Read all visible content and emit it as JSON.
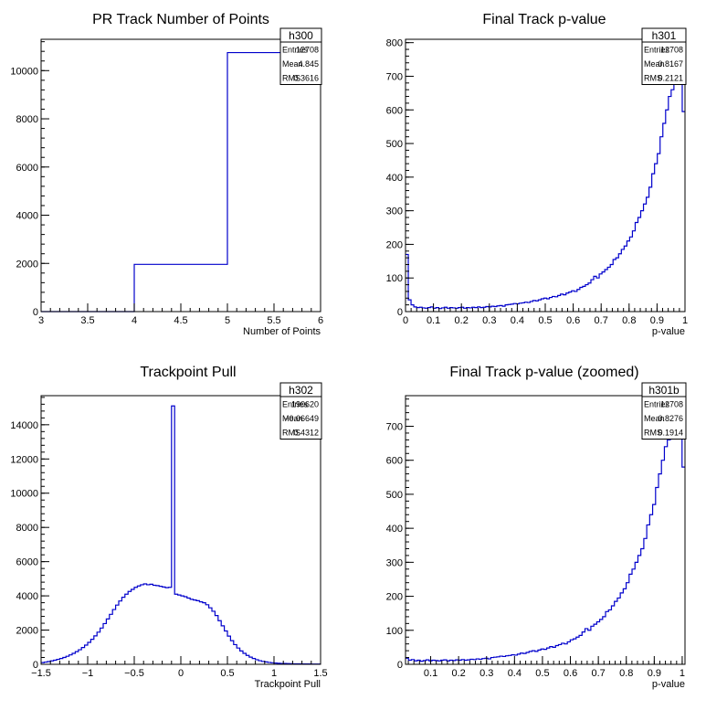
{
  "chart_data": [
    {
      "type": "histogram",
      "title": "PR Track Number of Points",
      "xlabel": "Number of Points",
      "ylabel": "",
      "xlim": [
        3,
        6
      ],
      "ylim": [
        0,
        11300
      ],
      "xticks": [
        "3",
        "3.5",
        "4",
        "4.5",
        "5",
        "5.5",
        "6"
      ],
      "xtick_values": [
        3,
        3.5,
        4,
        4.5,
        5,
        5.5,
        6
      ],
      "yticks": [
        "0",
        "2000",
        "4000",
        "6000",
        "8000",
        "10000"
      ],
      "ytick_values": [
        0,
        2000,
        4000,
        6000,
        8000,
        10000
      ],
      "line_color": "#0000cc",
      "bins": [
        {
          "x": [
            3,
            4
          ],
          "y": 0
        },
        {
          "x": [
            4,
            5
          ],
          "y": 1960
        },
        {
          "x": [
            5,
            6
          ],
          "y": 10748
        }
      ],
      "stats": {
        "name": "h300",
        "rows": [
          {
            "label": "Entries",
            "value": "12708"
          },
          {
            "label": "Mean",
            "value": "4.845"
          },
          {
            "label": "RMS",
            "value": "0.3616"
          }
        ]
      }
    },
    {
      "type": "histogram",
      "title": "Final Track p-value",
      "xlabel": "p-value",
      "ylabel": "",
      "xlim": [
        0,
        1
      ],
      "ylim": [
        0,
        810
      ],
      "xticks": [
        "0",
        "0.1",
        "0.2",
        "0.3",
        "0.4",
        "0.5",
        "0.6",
        "0.7",
        "0.8",
        "0.9",
        "1"
      ],
      "xtick_values": [
        0,
        0.1,
        0.2,
        0.3,
        0.4,
        0.5,
        0.6,
        0.7,
        0.8,
        0.9,
        1
      ],
      "yticks": [
        "0",
        "100",
        "200",
        "300",
        "400",
        "500",
        "600",
        "700",
        "800"
      ],
      "ytick_values": [
        0,
        100,
        200,
        300,
        400,
        500,
        600,
        700,
        800
      ],
      "line_color": "#0000cc",
      "bin_edges": [
        0,
        1
      ],
      "counts": [
        170,
        35,
        20,
        14,
        12,
        13,
        11,
        10,
        12,
        14,
        10,
        12,
        9,
        11,
        13,
        10,
        12,
        11,
        10,
        12,
        13,
        10,
        12,
        11,
        13,
        12,
        14,
        12,
        13,
        15,
        14,
        16,
        15,
        17,
        18,
        16,
        20,
        21,
        22,
        24,
        23,
        25,
        26,
        28,
        27,
        30,
        33,
        32,
        35,
        38,
        40,
        38,
        42,
        45,
        44,
        48,
        52,
        50,
        55,
        58,
        62,
        60,
        66,
        72,
        75,
        80,
        85,
        95,
        105,
        100,
        112,
        118,
        125,
        132,
        140,
        155,
        160,
        172,
        185,
        195,
        210,
        222,
        240,
        265,
        280,
        300,
        320,
        340,
        370,
        410,
        440,
        470,
        520,
        560,
        600,
        640,
        660,
        690,
        730,
        800,
        595
      ],
      "stats": {
        "name": "h301",
        "rows": [
          {
            "label": "Entries",
            "value": "12708"
          },
          {
            "label": "Mean",
            "value": "0.8167"
          },
          {
            "label": "RMS",
            "value": "0.2121"
          }
        ]
      }
    },
    {
      "type": "histogram",
      "title": "Trackpoint Pull",
      "xlabel": "Trackpoint Pull",
      "ylabel": "",
      "xlim": [
        -1.5,
        1.5
      ],
      "ylim": [
        0,
        15700
      ],
      "xticks": [
        "−1.5",
        "−1",
        "−0.5",
        "0",
        "0.5",
        "1",
        "1.5"
      ],
      "xtick_values": [
        -1.5,
        -1,
        -0.5,
        0,
        0.5,
        1,
        1.5
      ],
      "yticks": [
        "0",
        "2000",
        "4000",
        "6000",
        "8000",
        "10000",
        "12000",
        "14000"
      ],
      "ytick_values": [
        0,
        2000,
        4000,
        6000,
        8000,
        10000,
        12000,
        14000
      ],
      "line_color": "#0000cc",
      "bin_edges": [
        -1.5,
        1.5
      ],
      "counts": [
        100,
        130,
        160,
        200,
        240,
        290,
        340,
        400,
        470,
        550,
        640,
        740,
        850,
        980,
        1120,
        1280,
        1460,
        1660,
        1880,
        2120,
        2380,
        2650,
        2920,
        3200,
        3460,
        3700,
        3920,
        4100,
        4260,
        4380,
        4500,
        4580,
        4650,
        4700,
        4650,
        4680,
        4620,
        4600,
        4560,
        4520,
        4480,
        4500,
        15100,
        4100,
        4050,
        4000,
        3950,
        3870,
        3800,
        3760,
        3720,
        3650,
        3600,
        3480,
        3300,
        3100,
        2850,
        2550,
        2250,
        1950,
        1650,
        1380,
        1150,
        950,
        780,
        640,
        520,
        420,
        340,
        270,
        210,
        170,
        140,
        110,
        90,
        75,
        60,
        50,
        45,
        40,
        35,
        30,
        28,
        25,
        22,
        20,
        18,
        16,
        15,
        14
      ],
      "stats": {
        "name": "h302",
        "rows": [
          {
            "label": "Entries",
            "value": "190620"
          },
          {
            "label": "Mean",
            "value": "−0.06649"
          },
          {
            "label": "RMS",
            "value": "0.4312"
          }
        ]
      }
    },
    {
      "type": "histogram",
      "title": "Final Track p-value (zoomed)",
      "xlabel": "p-value",
      "ylabel": "",
      "xlim": [
        0.01,
        1.01
      ],
      "ylim": [
        0,
        790
      ],
      "xticks": [
        "0.1",
        "0.2",
        "0.3",
        "0.4",
        "0.5",
        "0.6",
        "0.7",
        "0.8",
        "0.9",
        "1"
      ],
      "xtick_values": [
        0.1,
        0.2,
        0.3,
        0.4,
        0.5,
        0.6,
        0.7,
        0.8,
        0.9,
        1
      ],
      "yticks": [
        "0",
        "100",
        "200",
        "300",
        "400",
        "500",
        "600",
        "700"
      ],
      "ytick_values": [
        0,
        100,
        200,
        300,
        400,
        500,
        600,
        700
      ],
      "line_color": "#0000cc",
      "bin_edges": [
        0.01,
        1.01
      ],
      "counts": [
        18,
        12,
        14,
        10,
        12,
        9,
        11,
        13,
        10,
        12,
        11,
        10,
        12,
        13,
        10,
        12,
        11,
        13,
        12,
        14,
        12,
        13,
        15,
        14,
        16,
        15,
        17,
        18,
        16,
        20,
        21,
        22,
        24,
        23,
        25,
        26,
        28,
        27,
        30,
        33,
        32,
        35,
        38,
        40,
        38,
        42,
        45,
        44,
        48,
        52,
        50,
        55,
        58,
        62,
        60,
        66,
        72,
        75,
        80,
        85,
        95,
        105,
        100,
        112,
        118,
        125,
        132,
        140,
        155,
        160,
        172,
        185,
        195,
        210,
        222,
        240,
        265,
        280,
        300,
        320,
        340,
        370,
        410,
        440,
        470,
        520,
        560,
        600,
        640,
        660,
        690,
        730,
        780,
        780,
        580
      ],
      "stats": {
        "name": "h301b",
        "rows": [
          {
            "label": "Entries",
            "value": "12708"
          },
          {
            "label": "Mean",
            "value": "0.8276"
          },
          {
            "label": "RMS",
            "value": "0.1914"
          }
        ]
      }
    }
  ]
}
